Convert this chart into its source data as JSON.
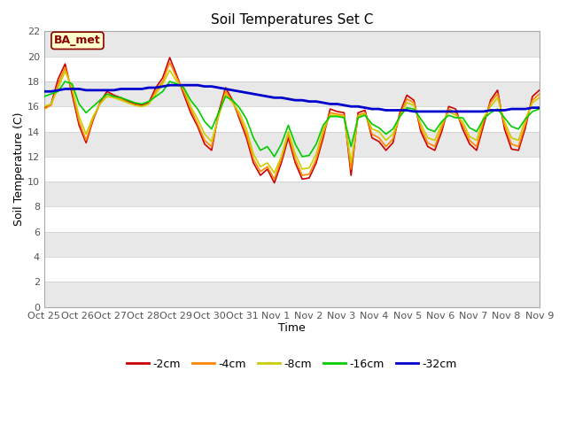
{
  "title": "Soil Temperatures Set C",
  "xlabel": "Time",
  "ylabel": "Soil Temperature (C)",
  "ylim": [
    0,
    22
  ],
  "yticks": [
    0,
    2,
    4,
    6,
    8,
    10,
    12,
    14,
    16,
    18,
    20,
    22
  ],
  "xtick_labels": [
    "Oct 25",
    "Oct 26",
    "Oct 27",
    "Oct 28",
    "Oct 29",
    "Oct 30",
    "Oct 31",
    "Nov 1",
    "Nov 2",
    "Nov 3",
    "Nov 4",
    "Nov 5",
    "Nov 6",
    "Nov 7",
    "Nov 8",
    "Nov 9"
  ],
  "bg_color": "#ffffff",
  "plot_bg_color": "#ffffff",
  "band_color_light": "#ffffff",
  "band_color_dark": "#e8e8e8",
  "legend_label": "BA_met",
  "series_colors": {
    "-2cm": "#cc0000",
    "-4cm": "#ff8800",
    "-8cm": "#cccc00",
    "-16cm": "#00cc00",
    "-32cm": "#0000cc"
  },
  "series_2cm": [
    15.9,
    16.2,
    18.2,
    19.4,
    17.0,
    14.5,
    13.1,
    14.9,
    16.3,
    17.2,
    16.9,
    16.7,
    16.4,
    16.2,
    16.1,
    16.3,
    17.5,
    18.3,
    19.9,
    18.5,
    17.0,
    15.5,
    14.4,
    13.0,
    12.5,
    15.5,
    17.5,
    16.5,
    15.0,
    13.5,
    11.5,
    10.5,
    11.0,
    9.9,
    11.5,
    13.5,
    11.5,
    10.2,
    10.3,
    11.5,
    13.5,
    15.8,
    15.6,
    15.5,
    10.5,
    15.5,
    15.7,
    13.5,
    13.2,
    12.5,
    13.1,
    15.5,
    16.9,
    16.5,
    14.0,
    12.8,
    12.5,
    14.0,
    16.0,
    15.8,
    14.2,
    13.0,
    12.5,
    14.5,
    16.5,
    17.3,
    14.2,
    12.6,
    12.5,
    14.3,
    16.8,
    17.3
  ],
  "series_4cm": [
    15.8,
    16.1,
    17.8,
    19.1,
    17.3,
    14.8,
    13.3,
    15.0,
    16.2,
    17.0,
    16.8,
    16.6,
    16.3,
    16.1,
    16.0,
    16.2,
    17.2,
    18.0,
    19.5,
    18.3,
    17.2,
    15.8,
    14.6,
    13.3,
    12.8,
    15.3,
    17.2,
    16.4,
    15.2,
    13.8,
    11.8,
    10.8,
    11.2,
    10.2,
    11.8,
    13.8,
    11.8,
    10.5,
    10.6,
    11.8,
    13.8,
    15.5,
    15.4,
    15.3,
    11.0,
    15.3,
    15.5,
    13.8,
    13.5,
    12.8,
    13.4,
    15.3,
    16.6,
    16.3,
    14.3,
    13.1,
    12.8,
    14.3,
    15.8,
    15.5,
    14.5,
    13.3,
    12.8,
    14.8,
    16.3,
    17.0,
    14.5,
    13.0,
    12.8,
    14.6,
    16.5,
    17.0
  ],
  "series_8cm": [
    16.0,
    16.2,
    17.5,
    18.8,
    17.5,
    15.2,
    13.8,
    15.2,
    16.2,
    16.8,
    16.7,
    16.5,
    16.3,
    16.1,
    16.0,
    16.2,
    17.0,
    17.8,
    18.9,
    18.0,
    17.5,
    16.0,
    15.0,
    13.8,
    13.2,
    15.2,
    17.0,
    16.3,
    15.5,
    14.2,
    12.2,
    11.2,
    11.5,
    10.7,
    12.0,
    14.0,
    12.2,
    11.0,
    11.1,
    12.2,
    14.2,
    15.3,
    15.3,
    15.2,
    11.5,
    15.2,
    15.4,
    14.2,
    14.0,
    13.3,
    13.8,
    15.2,
    16.3,
    16.1,
    14.6,
    13.5,
    13.3,
    14.6,
    15.6,
    15.3,
    14.8,
    13.6,
    13.3,
    15.1,
    16.0,
    16.7,
    14.8,
    13.5,
    13.3,
    15.0,
    16.3,
    16.7
  ],
  "series_16cm": [
    16.8,
    17.0,
    17.2,
    18.0,
    17.8,
    16.2,
    15.5,
    16.0,
    16.5,
    17.0,
    16.8,
    16.7,
    16.5,
    16.3,
    16.2,
    16.4,
    16.8,
    17.2,
    18.0,
    17.8,
    17.5,
    16.5,
    15.8,
    14.8,
    14.2,
    15.5,
    16.8,
    16.5,
    15.9,
    15.0,
    13.5,
    12.5,
    12.8,
    12.0,
    13.0,
    14.5,
    13.0,
    12.0,
    12.1,
    13.0,
    14.5,
    15.2,
    15.2,
    15.1,
    12.8,
    15.1,
    15.3,
    14.6,
    14.3,
    13.8,
    14.2,
    15.2,
    15.9,
    15.8,
    15.0,
    14.2,
    14.0,
    14.8,
    15.3,
    15.1,
    15.1,
    14.3,
    14.0,
    15.0,
    15.5,
    15.8,
    15.1,
    14.4,
    14.2,
    15.0,
    15.6,
    15.8
  ],
  "series_32cm": [
    17.2,
    17.2,
    17.3,
    17.4,
    17.4,
    17.4,
    17.3,
    17.3,
    17.3,
    17.3,
    17.3,
    17.4,
    17.4,
    17.4,
    17.4,
    17.5,
    17.5,
    17.6,
    17.7,
    17.7,
    17.7,
    17.7,
    17.7,
    17.6,
    17.6,
    17.5,
    17.4,
    17.3,
    17.2,
    17.1,
    17.0,
    16.9,
    16.8,
    16.7,
    16.7,
    16.6,
    16.5,
    16.5,
    16.4,
    16.4,
    16.3,
    16.2,
    16.2,
    16.1,
    16.0,
    16.0,
    15.9,
    15.8,
    15.8,
    15.7,
    15.7,
    15.7,
    15.7,
    15.6,
    15.6,
    15.6,
    15.6,
    15.6,
    15.6,
    15.6,
    15.6,
    15.6,
    15.6,
    15.6,
    15.7,
    15.7,
    15.7,
    15.8,
    15.8,
    15.8,
    15.9,
    15.9
  ]
}
